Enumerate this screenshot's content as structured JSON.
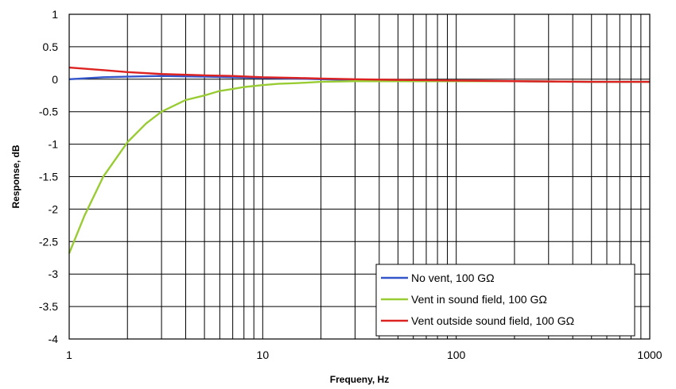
{
  "chart_data": {
    "type": "line",
    "xlabel": "Frequeny, Hz",
    "ylabel": "Response, dB",
    "xscale": "log",
    "xlim": [
      1,
      1000
    ],
    "ylim": [
      -4,
      1
    ],
    "xticks": [
      1,
      10,
      100,
      1000
    ],
    "xtick_labels": [
      "1",
      "10",
      "100",
      "1000"
    ],
    "yticks": [
      1,
      0.5,
      0,
      -0.5,
      -1,
      -1.5,
      -2,
      -2.5,
      -3,
      -3.5,
      -4
    ],
    "ytick_labels": [
      "1",
      "0.5",
      "0",
      "-0.5",
      "-1",
      "-1.5",
      "-2",
      "-2.5",
      "-3",
      "-3.5",
      "-4"
    ],
    "grid": true,
    "legend_position": "bottom-right",
    "series": [
      {
        "name": "No vent, 100 GΩ",
        "color": "#3355cc",
        "x": [
          1,
          1.5,
          2,
          3,
          5,
          7,
          10,
          15,
          20,
          30,
          50,
          100,
          200,
          500,
          1000
        ],
        "y": [
          0.0,
          0.03,
          0.04,
          0.05,
          0.04,
          0.03,
          0.02,
          0.01,
          0.0,
          -0.01,
          -0.02,
          -0.03,
          -0.03,
          -0.04,
          -0.04
        ]
      },
      {
        "name": "Vent in sound field, 100 GΩ",
        "color": "#99cc33",
        "x": [
          1,
          1.2,
          1.5,
          2,
          2.5,
          3,
          4,
          5,
          6,
          7,
          8,
          10,
          12,
          15,
          20,
          30,
          50,
          100,
          200,
          500,
          1000
        ],
        "y": [
          -2.68,
          -2.1,
          -1.5,
          -0.97,
          -0.68,
          -0.5,
          -0.32,
          -0.25,
          -0.18,
          -0.15,
          -0.12,
          -0.09,
          -0.07,
          -0.06,
          -0.04,
          -0.03,
          -0.03,
          -0.03,
          -0.03,
          -0.04,
          -0.04
        ]
      },
      {
        "name": "Vent outside sound field, 100 GΩ",
        "color": "#dd2222",
        "x": [
          1,
          1.5,
          2,
          3,
          5,
          7,
          10,
          15,
          20,
          30,
          50,
          100,
          200,
          500,
          1000
        ],
        "y": [
          0.18,
          0.14,
          0.11,
          0.08,
          0.06,
          0.05,
          0.03,
          0.02,
          0.01,
          0.0,
          -0.01,
          -0.02,
          -0.03,
          -0.04,
          -0.04
        ]
      }
    ]
  }
}
